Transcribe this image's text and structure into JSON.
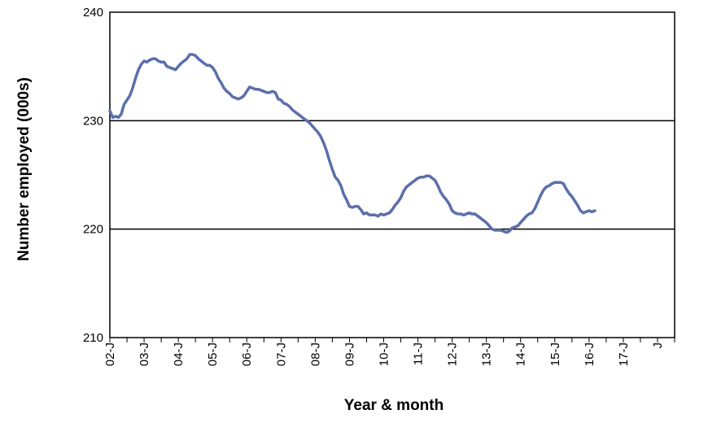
{
  "chart_data": {
    "type": "line",
    "xlabel": "Year & month",
    "ylabel": "Number employed (000s)",
    "ylim": [
      210,
      240
    ],
    "yticks": [
      210,
      220,
      230,
      240
    ],
    "gridlines_y": [
      220,
      230
    ],
    "x_tick_labels": [
      "02-J",
      "03-J",
      "04-J",
      "05-J",
      "06-J",
      "07-J",
      "08-J",
      "09-J",
      "10-J",
      "11-J",
      "12-J",
      "13-J",
      "14-J",
      "15-J",
      "16-J",
      "17-J",
      "J"
    ],
    "x_start": "2002-01",
    "x_step": "month",
    "series": [
      {
        "color": "#5b6fab",
        "values": [
          230.9,
          230.3,
          230.4,
          230.3,
          230.6,
          231.5,
          231.9,
          232.3,
          233.0,
          233.9,
          234.7,
          235.2,
          235.5,
          235.4,
          235.6,
          235.7,
          235.7,
          235.5,
          235.4,
          235.4,
          235.0,
          234.9,
          234.8,
          234.7,
          235.0,
          235.3,
          235.5,
          235.7,
          236.1,
          236.1,
          236.0,
          235.7,
          235.5,
          235.3,
          235.1,
          235.1,
          234.9,
          234.5,
          233.9,
          233.5,
          233.0,
          232.7,
          232.5,
          232.2,
          232.1,
          232.0,
          232.1,
          232.3,
          232.7,
          233.1,
          233.0,
          232.9,
          232.9,
          232.8,
          232.7,
          232.6,
          232.6,
          232.7,
          232.6,
          232.0,
          231.9,
          231.6,
          231.5,
          231.3,
          231.0,
          230.8,
          230.6,
          230.4,
          230.2,
          230.0,
          229.8,
          229.5,
          229.2,
          228.9,
          228.5,
          227.9,
          227.2,
          226.3,
          225.5,
          224.8,
          224.5,
          224.0,
          223.2,
          222.7,
          222.1,
          222.0,
          222.1,
          222.1,
          221.8,
          221.4,
          221.5,
          221.3,
          221.3,
          221.3,
          221.2,
          221.4,
          221.3,
          221.4,
          221.5,
          221.8,
          222.2,
          222.5,
          222.9,
          223.5,
          223.9,
          224.1,
          224.3,
          224.5,
          224.7,
          224.8,
          224.8,
          224.9,
          224.9,
          224.7,
          224.5,
          224.0,
          223.4,
          223.0,
          222.7,
          222.3,
          221.7,
          221.5,
          221.4,
          221.4,
          221.3,
          221.4,
          221.5,
          221.4,
          221.4,
          221.2,
          221.0,
          220.8,
          220.6,
          220.3,
          220.0,
          219.9,
          219.9,
          219.9,
          219.8,
          219.7,
          219.8,
          220.1,
          220.2,
          220.3,
          220.6,
          220.9,
          221.2,
          221.4,
          221.5,
          221.9,
          222.5,
          223.1,
          223.6,
          223.9,
          224.0,
          224.2,
          224.3,
          224.3,
          224.3,
          224.2,
          223.7,
          223.3,
          223.0,
          222.6,
          222.2,
          221.7,
          221.5,
          221.6,
          221.7,
          221.6,
          221.7
        ]
      }
    ]
  }
}
